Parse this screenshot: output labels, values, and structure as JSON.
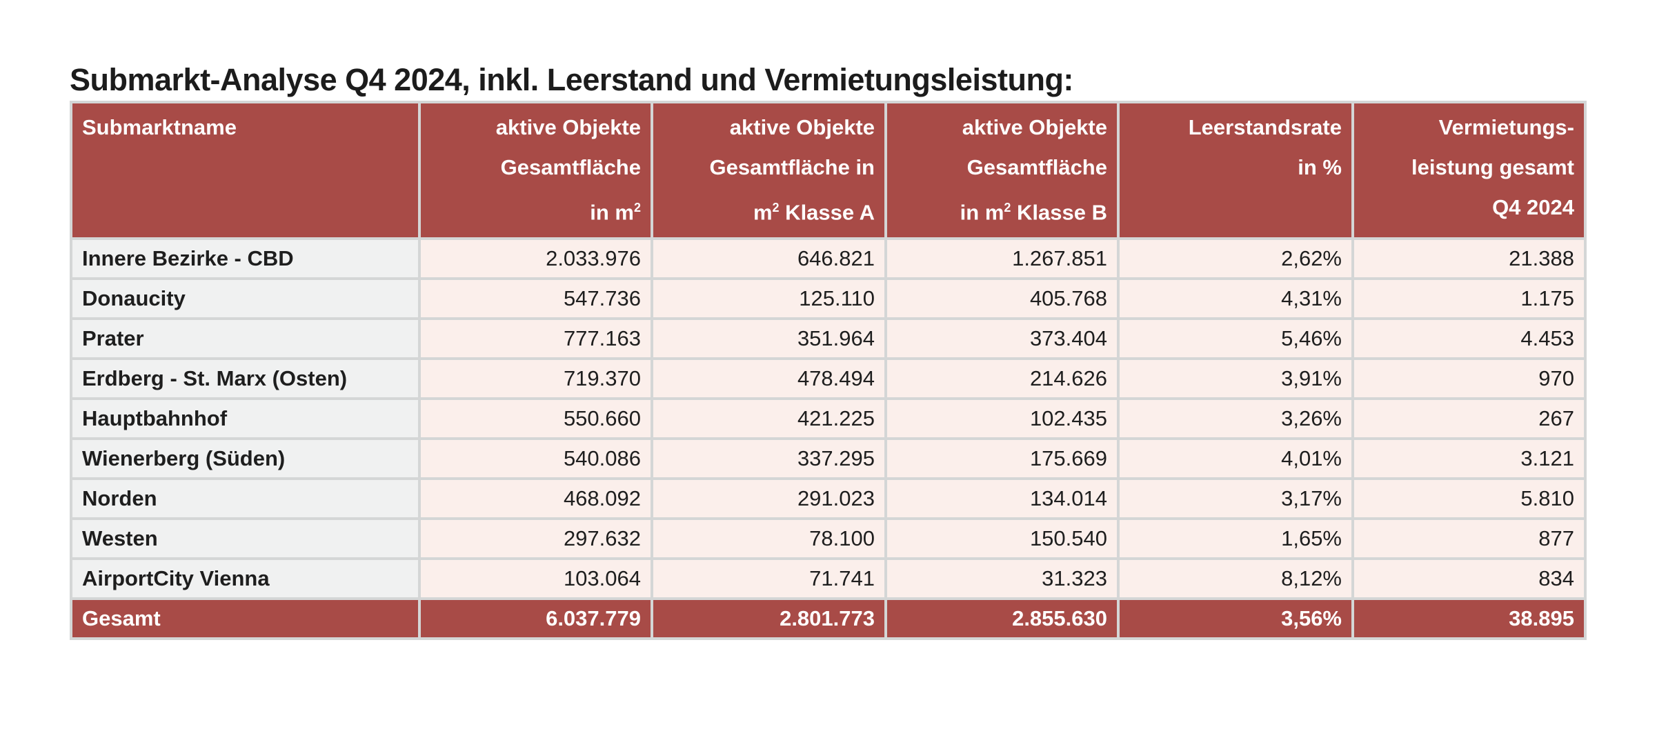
{
  "title": "Submarkt-Analyse Q4 2024, inkl. Leerstand und Vermietungsleistung:",
  "headers": [
    {
      "l1": "Submarktname",
      "l2": "",
      "l3": "",
      "sup": ""
    },
    {
      "l1": "aktive Objekte",
      "l2": "Gesamtfläche",
      "l3": "in m",
      "sup": "2"
    },
    {
      "l1": "aktive Objekte",
      "l2": "Gesamtfläche in",
      "l3": "m",
      "sup": "2",
      "l3b": " Klasse A"
    },
    {
      "l1": "aktive Objekte",
      "l2": "Gesamtfläche",
      "l3": "in m",
      "sup": "2",
      "l3b": " Klasse B"
    },
    {
      "l1": "Leerstandsrate",
      "l2": "in %",
      "l3": "",
      "sup": ""
    },
    {
      "l1": "Vermietungs-",
      "l2": "leistung gesamt",
      "l3": "Q4 2024",
      "sup": ""
    }
  ],
  "rows": [
    [
      "Innere Bezirke - CBD",
      "2.033.976",
      "646.821",
      "1.267.851",
      "2,62%",
      "21.388"
    ],
    [
      "Donaucity",
      "547.736",
      "125.110",
      "405.768",
      "4,31%",
      "1.175"
    ],
    [
      "Prater",
      "777.163",
      "351.964",
      "373.404",
      "5,46%",
      "4.453"
    ],
    [
      "Erdberg - St. Marx (Osten)",
      "719.370",
      "478.494",
      "214.626",
      "3,91%",
      "970"
    ],
    [
      "Hauptbahnhof",
      "550.660",
      "421.225",
      "102.435",
      "3,26%",
      "267"
    ],
    [
      "Wienerberg (Süden)",
      "540.086",
      "337.295",
      "175.669",
      "4,01%",
      "3.121"
    ],
    [
      "Norden",
      "468.092",
      "291.023",
      "134.014",
      "3,17%",
      "5.810"
    ],
    [
      "Westen",
      "297.632",
      "78.100",
      "150.540",
      "1,65%",
      "877"
    ],
    [
      "AirportCity Vienna",
      "103.064",
      "71.741",
      "31.323",
      "8,12%",
      "834"
    ]
  ],
  "total": [
    "Gesamt",
    "6.037.779",
    "2.801.773",
    "2.855.630",
    "3,56%",
    "38.895"
  ],
  "colors": {
    "header": "#a84b47",
    "name_cell": "#f0f1f1",
    "data_cell": "#fbefeb",
    "border": "#d4d6d6"
  }
}
